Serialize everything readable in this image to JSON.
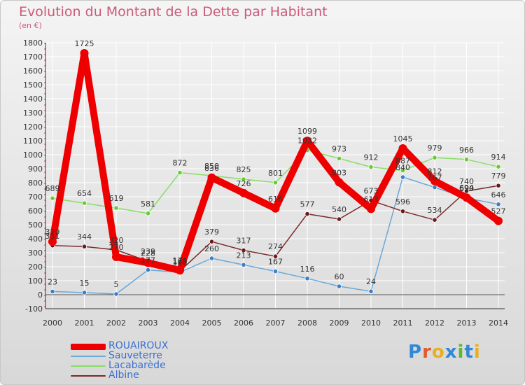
{
  "title": "Evolution du Montant de la Dette par Habitant",
  "subtitle": "(en €)",
  "logo": {
    "text": "Proxiti",
    "letter_colors": [
      "#2f88d8",
      "#e35a2a",
      "#e8b020",
      "#2f88d8",
      "#5cb82c",
      "#2f88d8",
      "#e8b020"
    ]
  },
  "chart_data": {
    "type": "line",
    "x": [
      "2000",
      "2001",
      "2002",
      "2003",
      "2004",
      "2005",
      "2006",
      "2007",
      "2008",
      "2009",
      "2010",
      "2011",
      "2012",
      "2013",
      "2014"
    ],
    "ylim": [
      -100,
      1800
    ],
    "y_ticks": [
      -100,
      0,
      100,
      200,
      300,
      400,
      500,
      600,
      700,
      800,
      900,
      1000,
      1100,
      1200,
      1300,
      1400,
      1500,
      1600,
      1700,
      1800
    ],
    "grid": true,
    "legend_position": "bottom-left",
    "series": [
      {
        "name": "ROUAIROUX",
        "color": "#ee0000",
        "width": 10,
        "marker": "#ee0000",
        "values": [
          379,
          1725,
          270,
          228,
          174,
          836,
          726,
          616,
          1099,
          803,
          613,
          1045,
          812,
          694,
          527
        ],
        "labels": [
          "379",
          "1725",
          "270",
          "228",
          "174",
          "836",
          "726",
          "616",
          "1099",
          "803",
          "613",
          "1045",
          "812",
          "694",
          "527"
        ]
      },
      {
        "name": "Sauveterre",
        "color": "#6aa8d8",
        "width": 1.5,
        "marker": "#3a7fc8",
        "values": [
          23,
          15,
          5,
          177,
          160,
          260,
          213,
          167,
          116,
          60,
          24,
          840,
          767,
          690,
          646
        ],
        "labels": [
          "23",
          "15",
          "5",
          "177",
          "160",
          "260",
          "213",
          "167",
          "116",
          "60",
          "24",
          "840",
          "767",
          "690",
          "646"
        ]
      },
      {
        "name": "Lacabarède",
        "color": "#88dd66",
        "width": 1.5,
        "marker": "#66cc33",
        "values": [
          689,
          654,
          619,
          581,
          872,
          850,
          825,
          801,
          1032,
          973,
          912,
          887,
          979,
          966,
          914
        ],
        "labels": [
          "689",
          "654",
          "619",
          "581",
          "872",
          "850",
          "825",
          "801",
          "1032",
          "973",
          "912",
          "887",
          "979",
          "966",
          "914"
        ]
      },
      {
        "name": "Albine",
        "color": "#7a2a2a",
        "width": 1.5,
        "marker": "#6a1a1a",
        "values": [
          351,
          344,
          320,
          239,
          169,
          379,
          317,
          274,
          577,
          540,
          673,
          596,
          534,
          740,
          779
        ],
        "labels": [
          "351",
          "344",
          "320",
          "239",
          "169",
          "379",
          "317",
          "274",
          "577",
          "540",
          "673",
          "596",
          "534",
          "740",
          "779"
        ]
      }
    ]
  }
}
